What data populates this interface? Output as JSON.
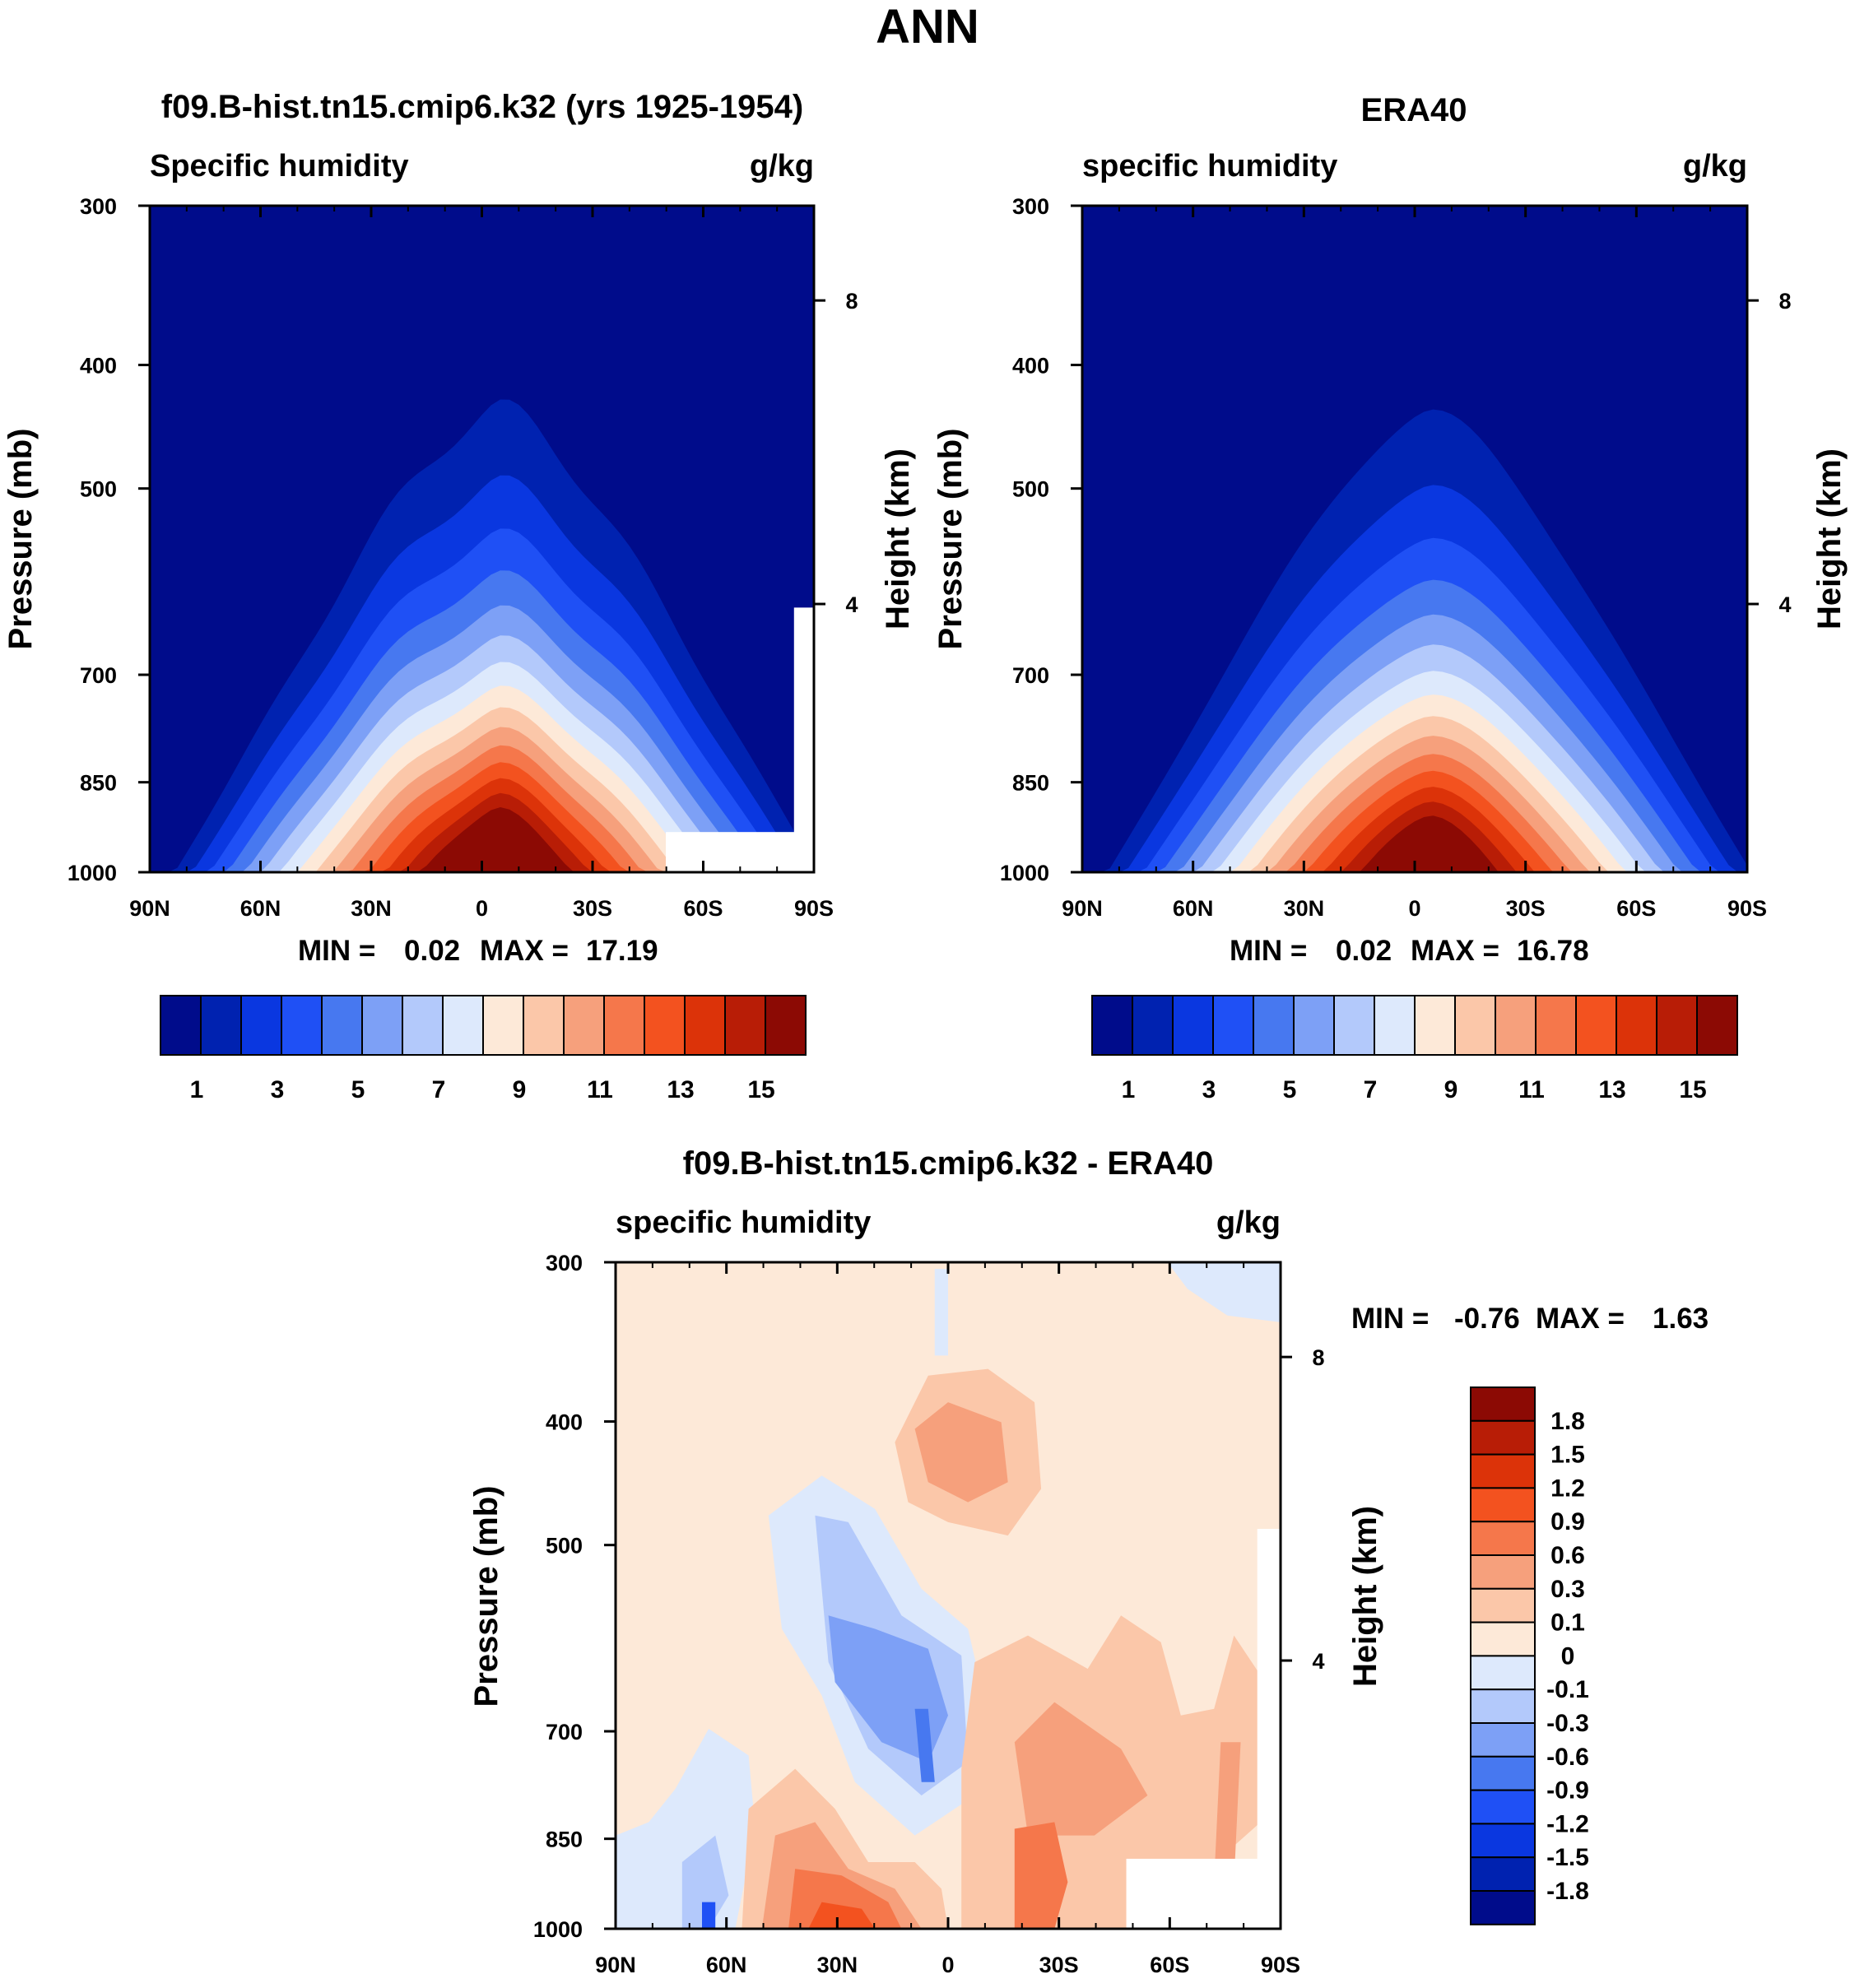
{
  "figure": {
    "title": "ANN"
  },
  "colors": {
    "abs_palette": [
      "#000c8b",
      "#0022b0",
      "#0a37e0",
      "#1f50f5",
      "#4778f0",
      "#7da0f6",
      "#b3c9fb",
      "#dde9fc",
      "#fde9d8",
      "#fbc7a9",
      "#f6a07c",
      "#f5774b",
      "#f3521f",
      "#dc3309",
      "#b81d06",
      "#8c0a04"
    ],
    "diff_palette": [
      "#000c8b",
      "#0022b0",
      "#0a37e0",
      "#1f50f5",
      "#4778f0",
      "#7da0f6",
      "#b3c9fb",
      "#dde9fc",
      "#fde9d8",
      "#fbc7a9",
      "#f6a07c",
      "#f5774b",
      "#f3521f",
      "#dc3309",
      "#b81d06",
      "#8c0a04"
    ]
  },
  "chart_data": [
    {
      "type": "heatmap",
      "id": "model",
      "title": "f09.B-hist.tn15.cmip6.k32 (yrs 1925-1954)",
      "left_label": "Specific humidity",
      "right_label": "g/kg",
      "xlabel": "",
      "ylabel": "Pressure (mb)",
      "ylabel_right": "Height (km)",
      "xticks": [
        "90N",
        "60N",
        "30N",
        "0",
        "30S",
        "60S",
        "90S"
      ],
      "xlim": [
        -90,
        90
      ],
      "yticks": [
        "300",
        "400",
        "500",
        "700",
        "850",
        "1000"
      ],
      "yticks_right": [
        "8",
        "4"
      ],
      "ylim": [
        300,
        1000
      ],
      "min_label": "MIN =",
      "min_value": "0.02",
      "max_label": "MAX =",
      "max_value": "17.19",
      "colorbar_labels": [
        "1",
        "3",
        "5",
        "7",
        "9",
        "11",
        "13",
        "15"
      ],
      "levels": [
        1,
        2,
        3,
        4,
        5,
        6,
        7,
        8,
        9,
        10,
        11,
        12,
        13,
        14,
        15
      ],
      "peak_value": 17.19
    },
    {
      "type": "heatmap",
      "id": "obs",
      "title": "ERA40",
      "left_label": "specific humidity",
      "right_label": "g/kg",
      "xlabel": "",
      "ylabel": "Pressure (mb)",
      "ylabel_right": "Height (km)",
      "xticks": [
        "90N",
        "60N",
        "30N",
        "0",
        "30S",
        "60S",
        "90S"
      ],
      "xlim": [
        -90,
        90
      ],
      "yticks": [
        "300",
        "400",
        "500",
        "700",
        "850",
        "1000"
      ],
      "yticks_right": [
        "8",
        "4"
      ],
      "ylim": [
        300,
        1000
      ],
      "min_label": "MIN =",
      "min_value": "0.02",
      "max_label": "MAX =",
      "max_value": "16.78",
      "colorbar_labels": [
        "1",
        "3",
        "5",
        "7",
        "9",
        "11",
        "13",
        "15"
      ],
      "levels": [
        1,
        2,
        3,
        4,
        5,
        6,
        7,
        8,
        9,
        10,
        11,
        12,
        13,
        14,
        15
      ],
      "peak_value": 16.78
    },
    {
      "type": "heatmap",
      "id": "diff",
      "title": "f09.B-hist.tn15.cmip6.k32 - ERA40",
      "left_label": "specific humidity",
      "right_label": "g/kg",
      "xlabel": "",
      "ylabel": "Pressure (mb)",
      "ylabel_right": "Height (km)",
      "xticks": [
        "90N",
        "60N",
        "30N",
        "0",
        "30S",
        "60S",
        "90S"
      ],
      "xlim": [
        -90,
        90
      ],
      "yticks": [
        "300",
        "400",
        "500",
        "700",
        "850",
        "1000"
      ],
      "yticks_right": [
        "8",
        "4"
      ],
      "ylim": [
        300,
        1000
      ],
      "min_label": "MIN =",
      "min_value": "-0.76",
      "max_label": "MAX =",
      "max_value": "1.63",
      "colorbar_labels": [
        "1.8",
        "1.5",
        "1.2",
        "0.9",
        "0.6",
        "0.3",
        "0.1",
        "0",
        "-0.1",
        "-0.3",
        "-0.6",
        "-0.9",
        "-1.2",
        "-1.5",
        "-1.8"
      ]
    }
  ]
}
